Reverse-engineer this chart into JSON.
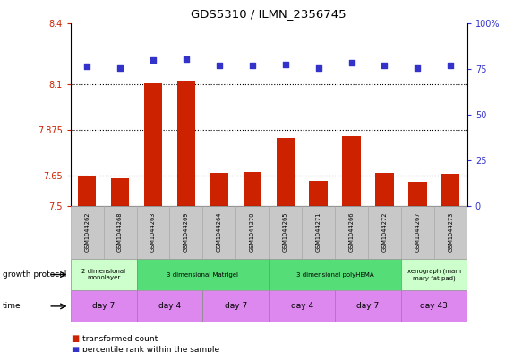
{
  "title": "GDS5310 / ILMN_2356745",
  "samples": [
    "GSM1044262",
    "GSM1044268",
    "GSM1044263",
    "GSM1044269",
    "GSM1044264",
    "GSM1044270",
    "GSM1044265",
    "GSM1044271",
    "GSM1044266",
    "GSM1044272",
    "GSM1044267",
    "GSM1044273"
  ],
  "bar_values": [
    7.648,
    7.637,
    8.102,
    8.115,
    7.662,
    7.668,
    7.833,
    7.622,
    7.844,
    7.662,
    7.62,
    7.66
  ],
  "percentile_values": [
    76.5,
    75.5,
    79.5,
    80.0,
    76.8,
    76.8,
    77.5,
    75.5,
    78.2,
    76.8,
    75.5,
    76.8
  ],
  "bar_color": "#cc2200",
  "dot_color": "#3333cc",
  "ylim_left": [
    7.5,
    8.4
  ],
  "ylim_right": [
    0,
    100
  ],
  "yticks_left": [
    7.5,
    7.65,
    7.875,
    8.1,
    8.4
  ],
  "ytick_labels_left": [
    "7.5",
    "7.65",
    "7.875",
    "8.1",
    "8.4"
  ],
  "yticks_right": [
    0,
    25,
    50,
    75,
    100
  ],
  "ytick_labels_right": [
    "0",
    "25",
    "50",
    "75",
    "100%"
  ],
  "hlines": [
    7.65,
    7.875,
    8.1
  ],
  "growth_protocol_groups": [
    {
      "label": "2 dimensional\nmonolayer",
      "start": 0,
      "end": 2,
      "color": "#ccffcc"
    },
    {
      "label": "3 dimensional Matrigel",
      "start": 2,
      "end": 6,
      "color": "#55dd77"
    },
    {
      "label": "3 dimensional polyHEMA",
      "start": 6,
      "end": 10,
      "color": "#55dd77"
    },
    {
      "label": "xenograph (mam\nmary fat pad)",
      "start": 10,
      "end": 12,
      "color": "#ccffcc"
    }
  ],
  "time_groups": [
    {
      "label": "day 7",
      "start": 0,
      "end": 2,
      "color": "#dd88ee"
    },
    {
      "label": "day 4",
      "start": 2,
      "end": 4,
      "color": "#dd88ee"
    },
    {
      "label": "day 7",
      "start": 4,
      "end": 6,
      "color": "#dd88ee"
    },
    {
      "label": "day 4",
      "start": 6,
      "end": 8,
      "color": "#dd88ee"
    },
    {
      "label": "day 7",
      "start": 8,
      "end": 10,
      "color": "#dd88ee"
    },
    {
      "label": "day 43",
      "start": 10,
      "end": 12,
      "color": "#dd88ee"
    }
  ],
  "legend_items": [
    {
      "label": "transformed count",
      "color": "#cc2200"
    },
    {
      "label": "percentile rank within the sample",
      "color": "#3333cc"
    }
  ],
  "bar_width": 0.55,
  "sample_bg_color": "#c8c8c8",
  "sample_border_color": "#aaaaaa"
}
